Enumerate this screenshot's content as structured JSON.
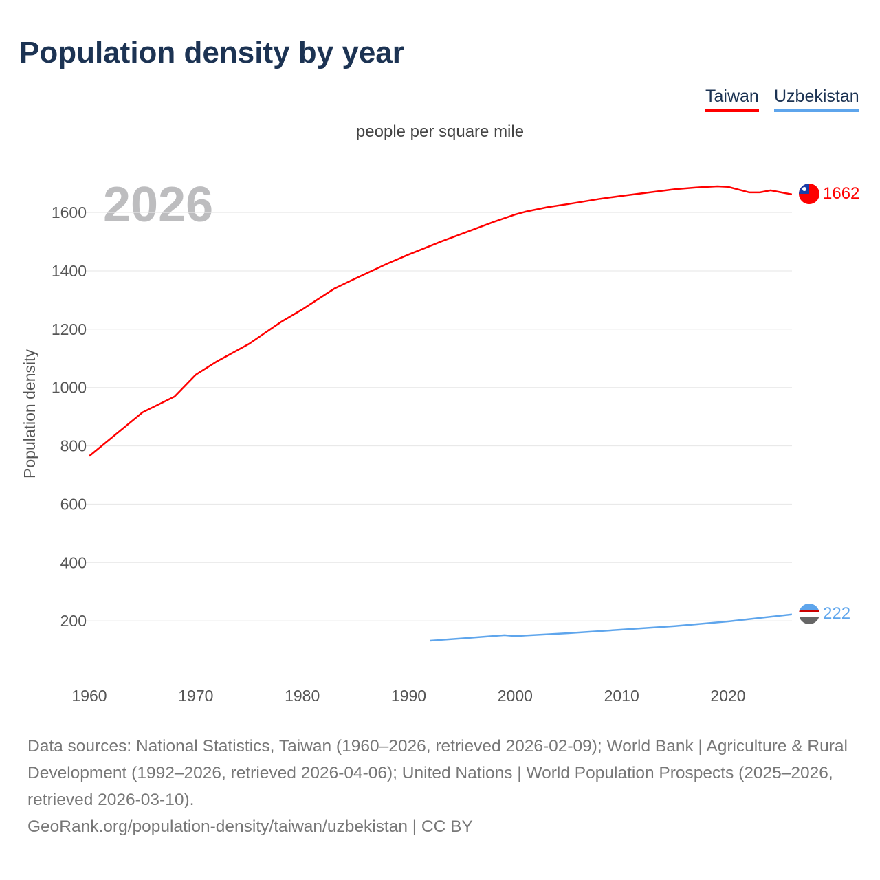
{
  "title": "Population density by year",
  "subtitle": "people per square mile",
  "year_overlay": "2026",
  "legend": [
    {
      "label": "Taiwan",
      "color": "#ff0000"
    },
    {
      "label": "Uzbekistan",
      "color": "#5ea5ec"
    }
  ],
  "end_labels": {
    "taiwan": "1662",
    "uzbekistan": "222"
  },
  "footer": {
    "sources": "Data sources: National Statistics, Taiwan (1960–2026, retrieved 2026-02-09); World Bank | Agriculture & Rural Development (1992–2026, retrieved 2026-04-06); United Nations | World Population Prospects (2025–2026, retrieved 2026-03-10).",
    "link": "GeoRank.org/population-density/taiwan/uzbekistan | CC BY"
  },
  "chart_data": {
    "type": "line",
    "title": "Population density by year",
    "xlabel": "",
    "ylabel": "Population density",
    "xlim": [
      1960,
      2026
    ],
    "ylim": [
      0,
      1700
    ],
    "xticks": [
      1960,
      1970,
      1980,
      1990,
      2000,
      2010,
      2020
    ],
    "yticks": [
      200,
      400,
      600,
      800,
      1000,
      1200,
      1400,
      1600
    ],
    "grid": true,
    "legend_position": "top-right",
    "series": [
      {
        "name": "Taiwan",
        "color": "#ff0000",
        "x": [
          1960,
          1965,
          1968,
          1970,
          1972,
          1975,
          1978,
          1980,
          1983,
          1985,
          1988,
          1990,
          1993,
          1995,
          1998,
          2000,
          2001,
          2003,
          2005,
          2008,
          2010,
          2012,
          2015,
          2017,
          2019,
          2020,
          2022,
          2023,
          2024,
          2026
        ],
        "y": [
          765,
          915,
          969,
          1044,
          1090,
          1150,
          1225,
          1268,
          1339,
          1374,
          1425,
          1456,
          1500,
          1527,
          1568,
          1593,
          1603,
          1618,
          1629,
          1647,
          1657,
          1666,
          1680,
          1686,
          1690,
          1688,
          1669,
          1669,
          1676,
          1662
        ]
      },
      {
        "name": "Uzbekistan",
        "color": "#5ea5ec",
        "x": [
          1992,
          1995,
          1999,
          2000,
          2005,
          2010,
          2015,
          2020,
          2026
        ],
        "y": [
          132,
          140,
          151,
          148,
          158,
          170,
          182,
          198,
          222
        ]
      }
    ]
  }
}
